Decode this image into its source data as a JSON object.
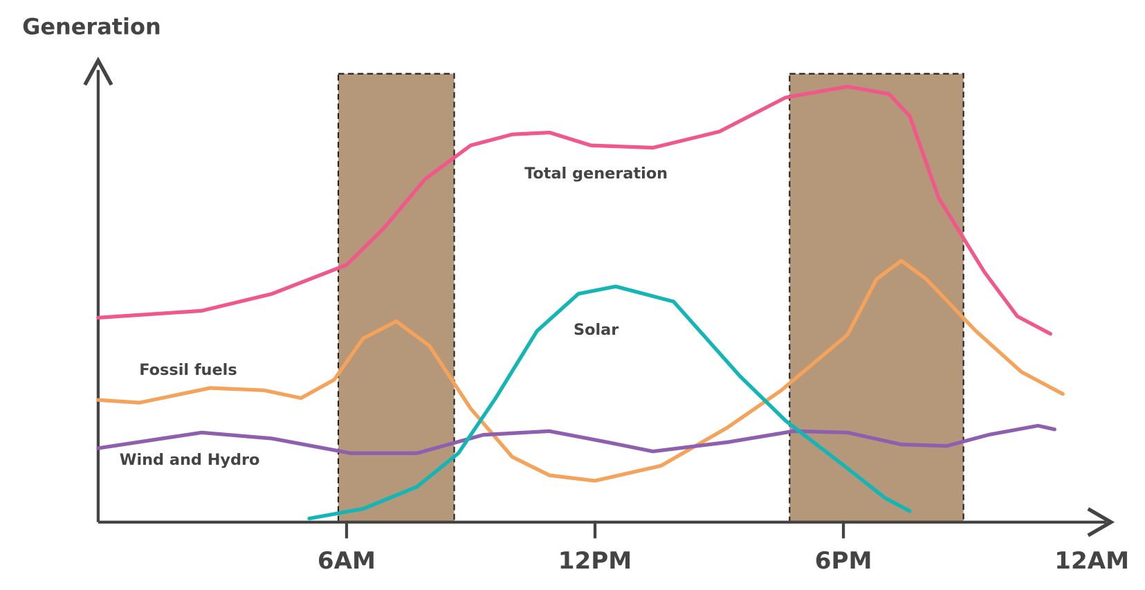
{
  "chart_data": {
    "type": "line",
    "ylabel": "Generation",
    "xlim": [
      0,
      24
    ],
    "ylim": [
      0,
      100
    ],
    "xticks": [
      {
        "value": 6,
        "label": "6AM"
      },
      {
        "value": 12,
        "label": "12PM"
      },
      {
        "value": 18,
        "label": "6PM"
      },
      {
        "value": 24,
        "label": "12AM"
      }
    ],
    "highlight_spans": [
      [
        5.8,
        8.6
      ],
      [
        16.7,
        20.9
      ]
    ],
    "highlight_color": "#b5977a",
    "series": [
      {
        "name": "Total generation",
        "color": "#f0588a",
        "x": [
          0,
          2.5,
          4.2,
          6,
          6.9,
          7.9,
          9,
          10,
          10.9,
          11.9,
          13.4,
          15,
          16.6,
          18.1,
          19.1,
          19.6,
          20.3,
          21.4,
          22.2,
          23
        ],
        "values": [
          44.5,
          46,
          49.7,
          56,
          64,
          74.7,
          82,
          84.4,
          84.8,
          82,
          81.5,
          85,
          92.4,
          94.8,
          93.2,
          88.4,
          70.6,
          54.5,
          44.8,
          41
        ]
      },
      {
        "name": "Fossil fuels",
        "color": "#f5a25a",
        "x": [
          0,
          1,
          2.7,
          4,
          4.9,
          5.7,
          6.4,
          7.2,
          8,
          9,
          10,
          10.9,
          12,
          13.6,
          15.2,
          16.5,
          18.1,
          18.8,
          19.4,
          20,
          21.2,
          22.3,
          23.3
        ],
        "values": [
          26.6,
          26,
          29.2,
          28.7,
          27,
          31,
          40,
          43.7,
          38.4,
          24.7,
          14.2,
          10.2,
          9,
          12.3,
          20.6,
          28.7,
          40.8,
          52.9,
          56.9,
          52.9,
          41.6,
          32.7,
          27.9
        ]
      },
      {
        "name": "Wind and Hydro",
        "color": "#8e5fae",
        "x": [
          0,
          2.5,
          4.2,
          6.1,
          7.7,
          9.3,
          10.9,
          12.3,
          13.4,
          15.2,
          16.8,
          18.1,
          19.4,
          20.5,
          21.5,
          22.7,
          23.1
        ],
        "values": [
          16.1,
          19.5,
          18.2,
          15,
          15,
          19,
          19.8,
          17.4,
          15.4,
          17.4,
          19.8,
          19.5,
          16.9,
          16.6,
          19,
          21,
          20.2
        ]
      },
      {
        "name": "Solar",
        "color": "#13b5b5",
        "x": [
          5.1,
          6.4,
          7.7,
          8.7,
          9.6,
          10.6,
          11.6,
          12.5,
          13.9,
          15.5,
          16.6,
          18.1,
          19,
          19.6
        ],
        "values": [
          0.8,
          2.9,
          7.7,
          15,
          27,
          41.6,
          49.7,
          51.3,
          48,
          31.8,
          22.1,
          11.7,
          5.3,
          2.4
        ]
      }
    ]
  }
}
